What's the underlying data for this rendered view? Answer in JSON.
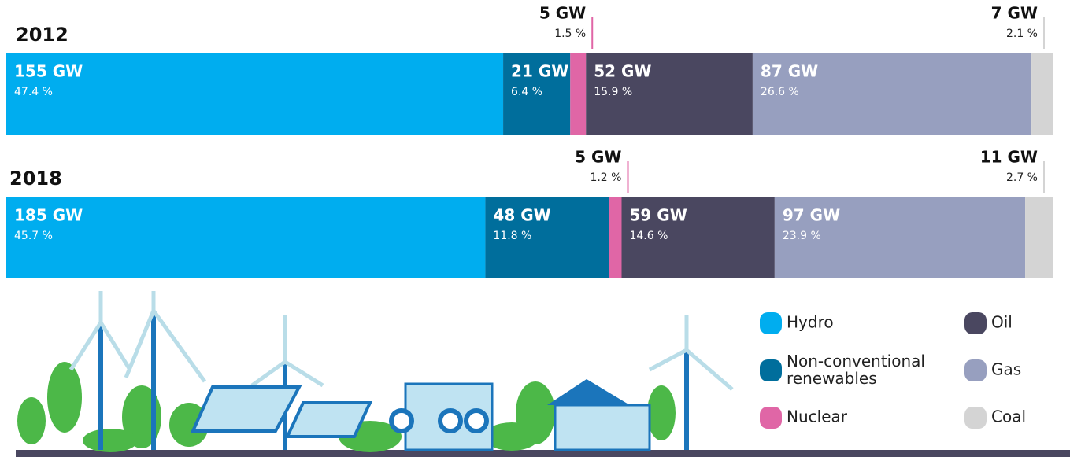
{
  "chart_data": {
    "type": "stacked_bar",
    "categories": [
      "2012",
      "2018"
    ],
    "series": [
      {
        "name": "Hydro",
        "color": "#00adef",
        "values": [
          155,
          185
        ],
        "value_labels": [
          "155 GW",
          "185 GW"
        ],
        "shares": [
          47.4,
          45.7
        ],
        "share_labels": [
          "47.4 %",
          "45.7 %"
        ]
      },
      {
        "name": "Non-conventional renewables",
        "color": "#006e9c",
        "values": [
          21,
          48
        ],
        "value_labels": [
          "21 GW",
          "48 GW"
        ],
        "shares": [
          6.4,
          11.8
        ],
        "share_labels": [
          "6.4 %",
          "11.8 %"
        ]
      },
      {
        "name": "Nuclear",
        "color": "#e066a6",
        "values": [
          5,
          5
        ],
        "value_labels": [
          "5 GW",
          "5 GW"
        ],
        "shares": [
          1.5,
          1.2
        ],
        "share_labels": [
          "1.5 %",
          "1.2 %"
        ]
      },
      {
        "name": "Oil",
        "color": "#4a4760",
        "values": [
          52,
          59
        ],
        "value_labels": [
          "52 GW",
          "59 GW"
        ],
        "shares": [
          15.9,
          14.6
        ],
        "share_labels": [
          "15.9 %",
          "14.6 %"
        ]
      },
      {
        "name": "Gas",
        "color": "#979fbf",
        "values": [
          87,
          97
        ],
        "value_labels": [
          "87 GW",
          "97 GW"
        ],
        "shares": [
          26.6,
          23.9
        ],
        "share_labels": [
          "26.6 %",
          "23.9 %"
        ]
      },
      {
        "name": "Coal",
        "color": "#d4d4d4",
        "values": [
          7,
          11
        ],
        "value_labels": [
          "7 GW",
          "11 GW"
        ],
        "shares": [
          2.1,
          2.7
        ],
        "share_labels": [
          "2.1 %",
          "2.7 %"
        ]
      }
    ]
  }
}
